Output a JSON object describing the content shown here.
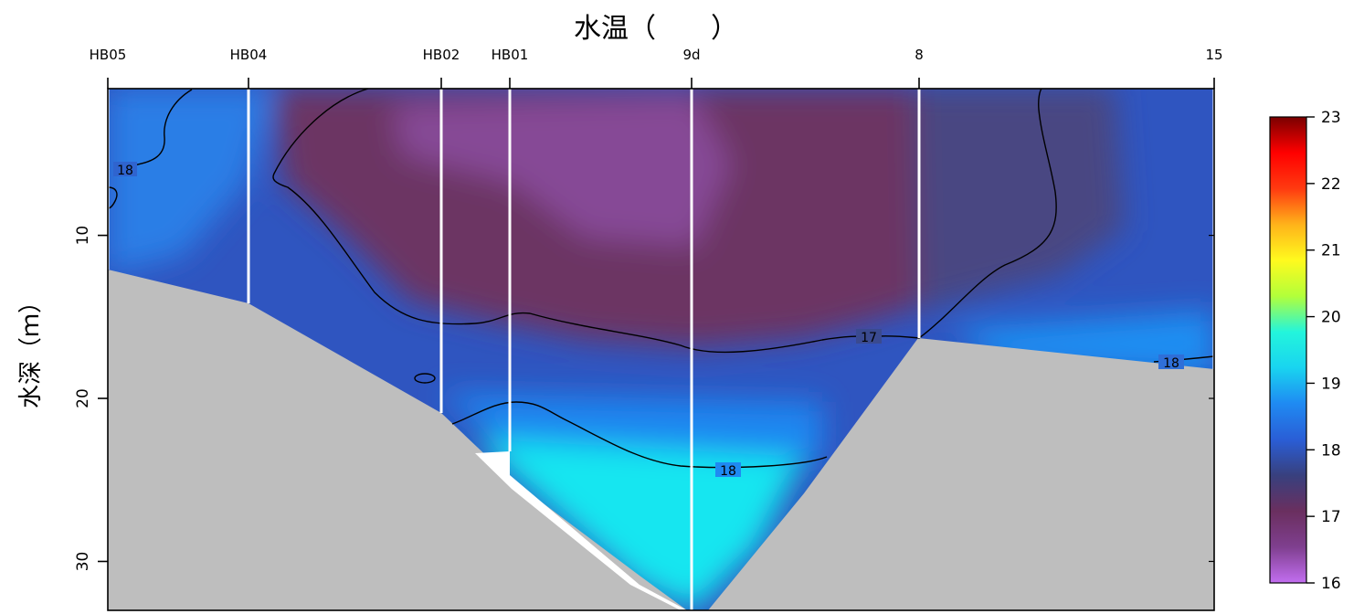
{
  "chart_data": {
    "type": "heatmap",
    "title": "水温（　　）",
    "ylabel": "水深（ｍ）",
    "xlabel": "",
    "stations": [
      "HB05",
      "HB04",
      "HB02",
      "HB01",
      "9d",
      "8",
      "15"
    ],
    "ylim": [
      33,
      1
    ],
    "y_ticks": [
      10,
      20,
      30
    ],
    "colorbar": {
      "min": 16,
      "max": 23,
      "ticks": [
        16,
        17,
        18,
        19,
        20,
        21,
        22,
        23
      ]
    },
    "contour_labels": [
      "18",
      "17",
      "18",
      "18"
    ],
    "colors": {
      "seabed": "#bebebe",
      "background": "#ffffff",
      "contour": "#000000",
      "station_line": "#ffffff",
      "colorbar_stops": [
        "#c26ef0",
        "#7f3f8f",
        "#6a2f5f",
        "#38407e",
        "#2a5ed6",
        "#1f8af2",
        "#19d4f0",
        "#23f5dc",
        "#b2ff3a",
        "#fffa1e",
        "#ffb31a",
        "#ff3a10",
        "#ff0000",
        "#7a0000"
      ]
    }
  }
}
